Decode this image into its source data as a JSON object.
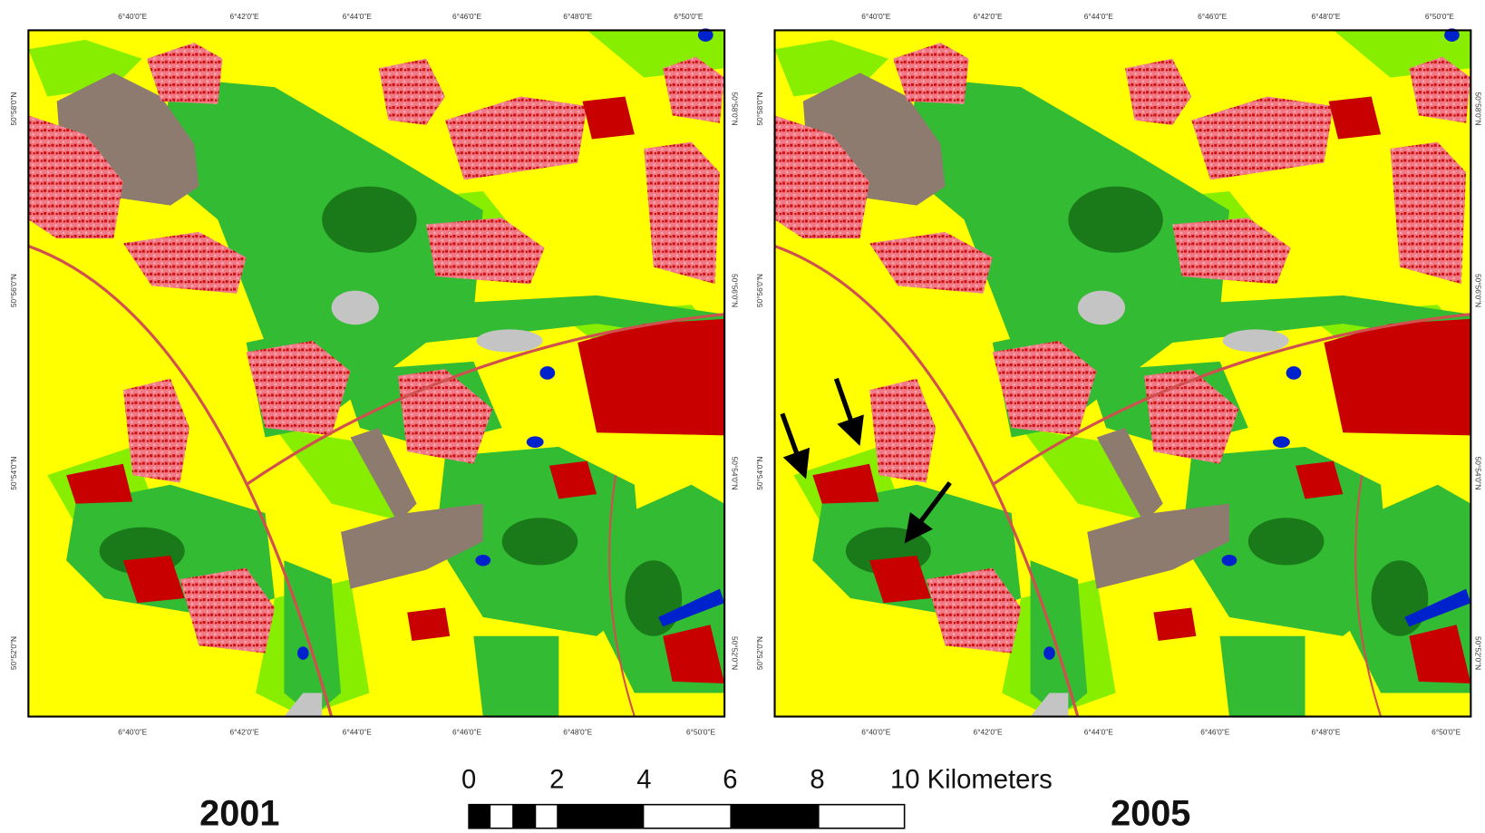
{
  "maps": [
    {
      "year": "2001",
      "top_labels": [
        "6°40'0\"E",
        "6°42'0\"E",
        "6°44'0\"E",
        "6°46'0\"E",
        "6°48'0\"E",
        "6°50'0\"E"
      ],
      "bottom_labels": [
        "6°40'0\"E",
        "6°42'0\"E",
        "6°44'0\"E",
        "6°46'0\"E",
        "6°48'0\"E",
        "6°50'0\"E"
      ],
      "left_labels": [
        "50°58'0\"N",
        "50°56'0\"N",
        "50°54'0\"N",
        "50°52'0\"N"
      ],
      "right_labels": [
        "50°58'0\"N",
        "50°56'0\"N",
        "50°54'0\"N",
        "50°52'0\"N"
      ]
    },
    {
      "year": "2005",
      "top_labels": [
        "6°40'0\"E",
        "6°42'0\"E",
        "6°44'0\"E",
        "6°46'0\"E",
        "6°48'0\"E",
        "6°50'0\"E"
      ],
      "bottom_labels": [
        "6°40'0\"E",
        "6°42'0\"E",
        "6°44'0\"E",
        "6°46'0\"E",
        "6°48'0\"E",
        "6°50'0\"E"
      ],
      "left_labels": [
        "50°58'0\"N",
        "50°56'0\"N",
        "50°54'0\"N",
        "50°52'0\"N"
      ],
      "right_labels": [
        "50°58'0\"N",
        "50°56'0\"N",
        "50°54'0\"N",
        "50°52'0\"N"
      ]
    }
  ],
  "scale_bar": {
    "labels": [
      "0",
      "2",
      "4",
      "6",
      "8",
      "10 Kilometers"
    ]
  }
}
